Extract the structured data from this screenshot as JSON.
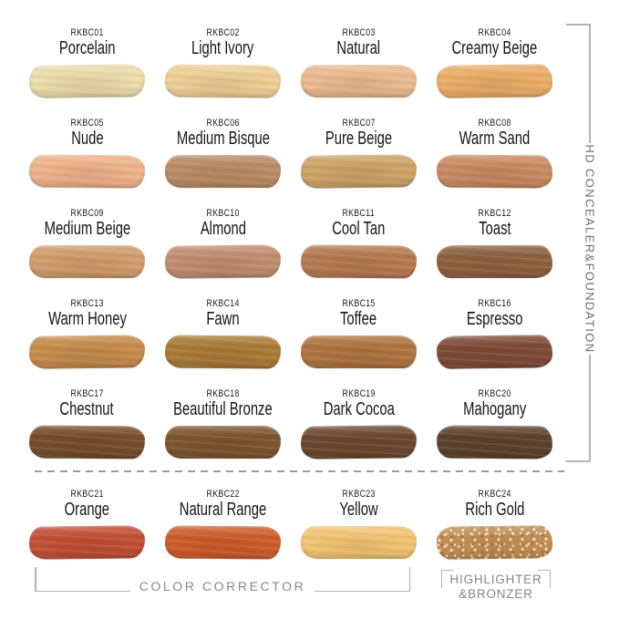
{
  "chart_data": {
    "type": "table",
    "columns": [
      "code",
      "name",
      "group",
      "color"
    ],
    "rows": [
      {
        "code": "RKBC01",
        "name": "Porcelain",
        "group": "HD CONCEALER&FOUNDATION",
        "color": "#ebdcab"
      },
      {
        "code": "RKBC02",
        "name": "Light Ivory",
        "group": "HD CONCEALER&FOUNDATION",
        "color": "#eccf95"
      },
      {
        "code": "RKBC03",
        "name": "Natural",
        "group": "HD CONCEALER&FOUNDATION",
        "color": "#e9ba91"
      },
      {
        "code": "RKBC04",
        "name": "Creamy Beige",
        "group": "HD CONCEALER&FOUNDATION",
        "color": "#e9ad67"
      },
      {
        "code": "RKBC05",
        "name": "Nude",
        "group": "HD CONCEALER&FOUNDATION",
        "color": "#edb28a"
      },
      {
        "code": "RKBC06",
        "name": "Medium Bisque",
        "group": "HD CONCEALER&FOUNDATION",
        "color": "#b98b66"
      },
      {
        "code": "RKBC07",
        "name": "Pure Beige",
        "group": "HD CONCEALER&FOUNDATION",
        "color": "#cda367"
      },
      {
        "code": "RKBC08",
        "name": "Warm Sand",
        "group": "HD CONCEALER&FOUNDATION",
        "color": "#c78a62"
      },
      {
        "code": "RKBC09",
        "name": "Medium Beige",
        "group": "HD CONCEALER&FOUNDATION",
        "color": "#d09c6c"
      },
      {
        "code": "RKBC10",
        "name": "Almond",
        "group": "HD CONCEALER&FOUNDATION",
        "color": "#c08d71"
      },
      {
        "code": "RKBC11",
        "name": "Cool Tan",
        "group": "HD CONCEALER&FOUNDATION",
        "color": "#b47a50"
      },
      {
        "code": "RKBC12",
        "name": "Toast",
        "group": "HD CONCEALER&FOUNDATION",
        "color": "#8c6040"
      },
      {
        "code": "RKBC13",
        "name": "Warm Honey",
        "group": "HD CONCEALER&FOUNDATION",
        "color": "#c48b4c"
      },
      {
        "code": "RKBC14",
        "name": "Fawn",
        "group": "HD CONCEALER&FOUNDATION",
        "color": "#a97a37"
      },
      {
        "code": "RKBC15",
        "name": "Toffee",
        "group": "HD CONCEALER&FOUNDATION",
        "color": "#ae7440"
      },
      {
        "code": "RKBC16",
        "name": "Espresso",
        "group": "HD CONCEALER&FOUNDATION",
        "color": "#7d4b37"
      },
      {
        "code": "RKBC17",
        "name": "Chestnut",
        "group": "HD CONCEALER&FOUNDATION",
        "color": "#754d2c"
      },
      {
        "code": "RKBC18",
        "name": "Beautiful Bronze",
        "group": "HD CONCEALER&FOUNDATION",
        "color": "#7c5530"
      },
      {
        "code": "RKBC19",
        "name": "Dark Cocoa",
        "group": "HD CONCEALER&FOUNDATION",
        "color": "#6b4730"
      },
      {
        "code": "RKBC20",
        "name": "Mahogany",
        "group": "HD CONCEALER&FOUNDATION",
        "color": "#5b422f"
      },
      {
        "code": "RKBC21",
        "name": "Orange",
        "group": "COLOR CORRECTOR",
        "color": "#c14f36"
      },
      {
        "code": "RKBC22",
        "name": "Natural Range",
        "group": "COLOR CORRECTOR",
        "color": "#cc5c2b"
      },
      {
        "code": "RKBC23",
        "name": "Yellow",
        "group": "COLOR CORRECTOR",
        "color": "#f1c474"
      },
      {
        "code": "RKBC24",
        "name": "Rich Gold",
        "group": "HIGHLIGHTER &BRONZER",
        "color": "#c18e54",
        "finish": "shimmer"
      }
    ]
  },
  "groups": {
    "right_label": "HD CONCEALER&FOUNDATION",
    "color_corrector_label": "COLOR CORRECTOR",
    "highlighter_line1": "HIGHLIGHTER",
    "highlighter_line2": "&BRONZER"
  },
  "ui_colors": {
    "bracket_gray": "#b2b2b2",
    "label_gray": "#878787",
    "text_black": "#1b1b1b"
  }
}
